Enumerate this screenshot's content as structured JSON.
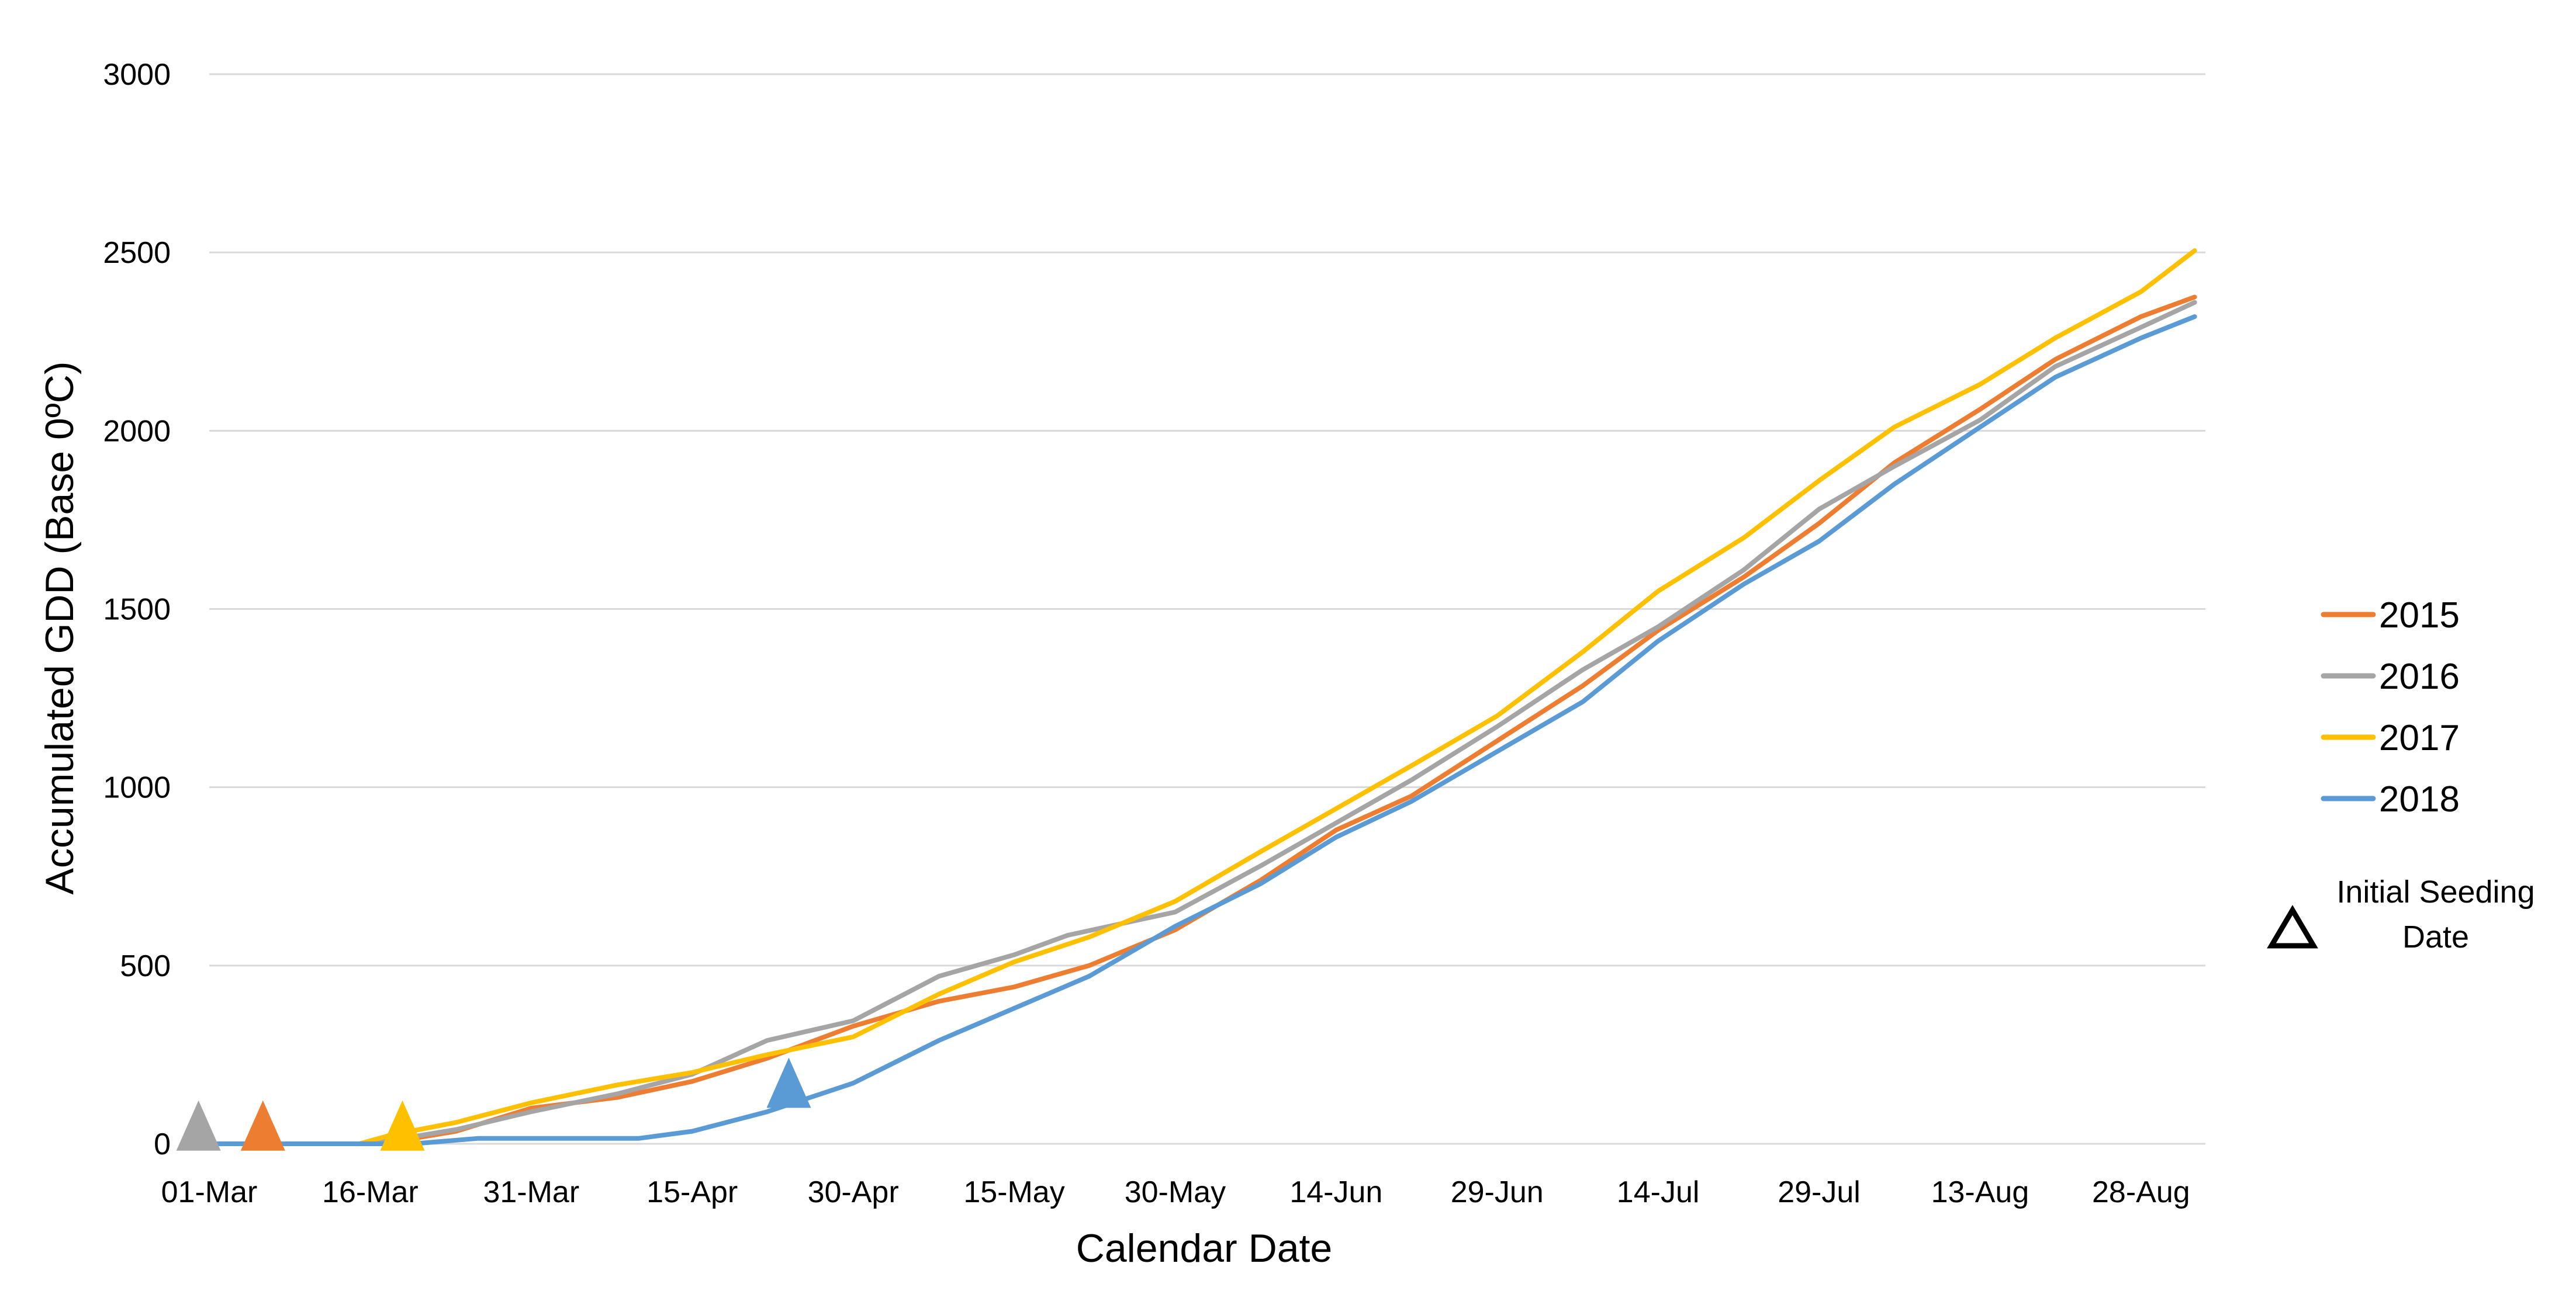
{
  "chart_data": {
    "type": "line",
    "title": "",
    "xlabel": "Calendar Date",
    "ylabel": "Accumulated GDD (Base 0ºC)",
    "ylim": [
      0,
      3000
    ],
    "xlim": [
      "01-Mar",
      "03-Sep"
    ],
    "y_ticks": [
      "0",
      "500",
      "1000",
      "1500",
      "2000",
      "2500",
      "3000"
    ],
    "x_ticks": [
      "01-Mar",
      "16-Mar",
      "31-Mar",
      "15-Apr",
      "30-Apr",
      "15-May",
      "30-May",
      "14-Jun",
      "29-Jun",
      "14-Jul",
      "29-Jul",
      "13-Aug",
      "28-Aug"
    ],
    "grid": true,
    "legend_position": "right",
    "series": [
      {
        "name": "2015",
        "color": "#ed7d31",
        "points": [
          [
            "01-Mar",
            0
          ],
          [
            "16-Mar",
            0
          ],
          [
            "19-Mar",
            10
          ],
          [
            "24-Mar",
            35
          ],
          [
            "31-Mar",
            100
          ],
          [
            "08-Apr",
            130
          ],
          [
            "15-Apr",
            175
          ],
          [
            "22-Apr",
            240
          ],
          [
            "30-Apr",
            330
          ],
          [
            "08-May",
            400
          ],
          [
            "15-May",
            440
          ],
          [
            "22-May",
            500
          ],
          [
            "30-May",
            600
          ],
          [
            "07-Jun",
            740
          ],
          [
            "14-Jun",
            880
          ],
          [
            "21-Jun",
            975
          ],
          [
            "29-Jun",
            1130
          ],
          [
            "07-Jul",
            1285
          ],
          [
            "14-Jul",
            1440
          ],
          [
            "22-Jul",
            1590
          ],
          [
            "29-Jul",
            1740
          ],
          [
            "05-Aug",
            1910
          ],
          [
            "13-Aug",
            2060
          ],
          [
            "20-Aug",
            2200
          ],
          [
            "28-Aug",
            2320
          ],
          [
            "02-Sep",
            2375
          ]
        ]
      },
      {
        "name": "2016",
        "color": "#a5a5a5",
        "points": [
          [
            "01-Mar",
            0
          ],
          [
            "16-Mar",
            0
          ],
          [
            "20-Mar",
            20
          ],
          [
            "24-Mar",
            40
          ],
          [
            "31-Mar",
            90
          ],
          [
            "08-Apr",
            140
          ],
          [
            "15-Apr",
            195
          ],
          [
            "22-Apr",
            290
          ],
          [
            "30-Apr",
            345
          ],
          [
            "08-May",
            470
          ],
          [
            "15-May",
            530
          ],
          [
            "20-May",
            585
          ],
          [
            "30-May",
            650
          ],
          [
            "07-Jun",
            780
          ],
          [
            "14-Jun",
            900
          ],
          [
            "21-Jun",
            1020
          ],
          [
            "29-Jun",
            1170
          ],
          [
            "07-Jul",
            1330
          ],
          [
            "14-Jul",
            1450
          ],
          [
            "22-Jul",
            1610
          ],
          [
            "29-Jul",
            1780
          ],
          [
            "05-Aug",
            1900
          ],
          [
            "13-Aug",
            2030
          ],
          [
            "20-Aug",
            2180
          ],
          [
            "28-Aug",
            2290
          ],
          [
            "02-Sep",
            2360
          ]
        ]
      },
      {
        "name": "2017",
        "color": "#ffc000",
        "points": [
          [
            "01-Mar",
            0
          ],
          [
            "15-Mar",
            0
          ],
          [
            "18-Mar",
            25
          ],
          [
            "24-Mar",
            60
          ],
          [
            "31-Mar",
            115
          ],
          [
            "08-Apr",
            165
          ],
          [
            "15-Apr",
            200
          ],
          [
            "22-Apr",
            250
          ],
          [
            "30-Apr",
            300
          ],
          [
            "08-May",
            420
          ],
          [
            "15-May",
            510
          ],
          [
            "22-May",
            580
          ],
          [
            "30-May",
            680
          ],
          [
            "07-Jun",
            820
          ],
          [
            "14-Jun",
            940
          ],
          [
            "21-Jun",
            1060
          ],
          [
            "29-Jun",
            1200
          ],
          [
            "07-Jul",
            1380
          ],
          [
            "14-Jul",
            1550
          ],
          [
            "22-Jul",
            1700
          ],
          [
            "29-Jul",
            1860
          ],
          [
            "05-Aug",
            2010
          ],
          [
            "13-Aug",
            2130
          ],
          [
            "20-Aug",
            2260
          ],
          [
            "28-Aug",
            2390
          ],
          [
            "02-Sep",
            2505
          ]
        ]
      },
      {
        "name": "2018",
        "color": "#5b9bd5",
        "points": [
          [
            "01-Mar",
            0
          ],
          [
            "20-Mar",
            0
          ],
          [
            "26-Mar",
            15
          ],
          [
            "02-Apr",
            15
          ],
          [
            "10-Apr",
            15
          ],
          [
            "15-Apr",
            35
          ],
          [
            "22-Apr",
            90
          ],
          [
            "30-Apr",
            170
          ],
          [
            "08-May",
            290
          ],
          [
            "15-May",
            380
          ],
          [
            "22-May",
            470
          ],
          [
            "30-May",
            610
          ],
          [
            "07-Jun",
            730
          ],
          [
            "14-Jun",
            860
          ],
          [
            "21-Jun",
            960
          ],
          [
            "29-Jun",
            1100
          ],
          [
            "07-Jul",
            1240
          ],
          [
            "14-Jul",
            1410
          ],
          [
            "22-Jul",
            1570
          ],
          [
            "29-Jul",
            1690
          ],
          [
            "05-Aug",
            1850
          ],
          [
            "13-Aug",
            2010
          ],
          [
            "20-Aug",
            2150
          ],
          [
            "28-Aug",
            2260
          ],
          [
            "02-Sep",
            2320
          ]
        ]
      }
    ],
    "annotations": [
      {
        "label": "Initial Seeding Date",
        "series": "2016",
        "x": "28-Feb",
        "y": 20,
        "marker": "triangle"
      },
      {
        "label": "Initial Seeding Date",
        "series": "2015",
        "x": "06-Mar",
        "y": 20,
        "marker": "triangle"
      },
      {
        "label": "Initial Seeding Date",
        "series": "2017",
        "x": "19-Mar",
        "y": 20,
        "marker": "triangle"
      },
      {
        "label": "Initial Seeding Date",
        "series": "2018",
        "x": "24-Apr",
        "y": 140,
        "marker": "triangle"
      }
    ],
    "legend_note": {
      "line1": "Initial Seeding",
      "line2": "Date"
    }
  }
}
